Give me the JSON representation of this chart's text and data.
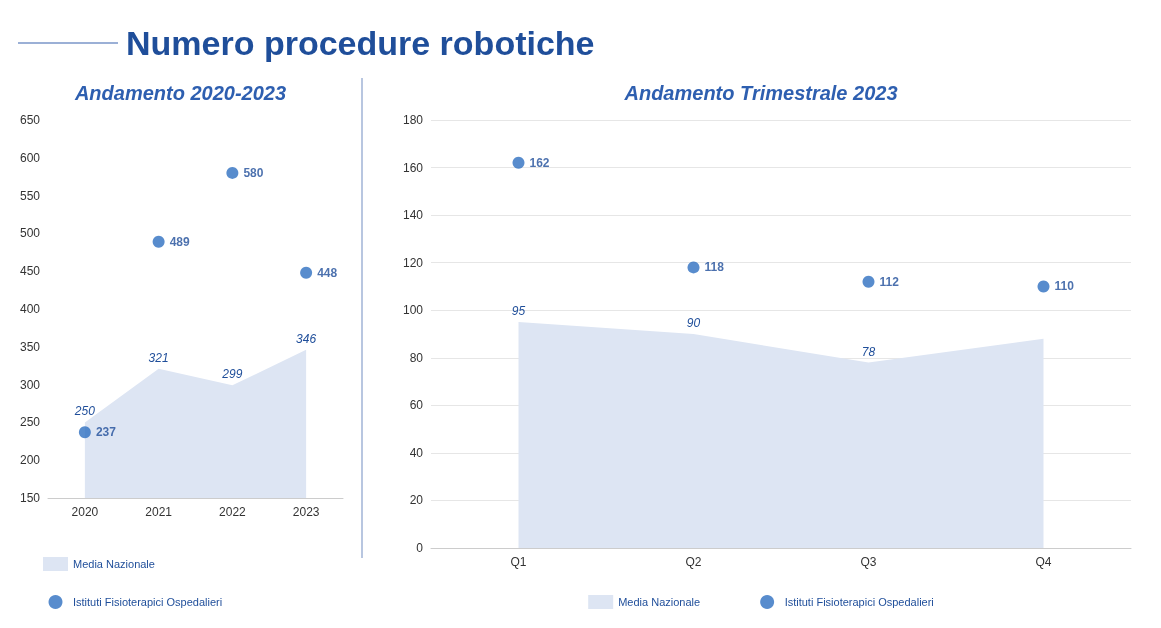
{
  "chart_data": [
    {
      "type": "area",
      "title": "Andamento 2020-2023",
      "annotations": [
        "Numero procedure robotiche"
      ],
      "categories": [
        "2020",
        "2021",
        "2022",
        "2023"
      ],
      "ylim": [
        150,
        650
      ],
      "yticks": [
        150,
        200,
        250,
        300,
        350,
        400,
        450,
        500,
        550,
        600,
        650
      ],
      "grid": false,
      "legend": "bottom left",
      "series": [
        {
          "name": "Media Nazionale",
          "color": "#dde5f3",
          "values": [
            250,
            321,
            299,
            346
          ],
          "value_labels": [
            "250",
            "321",
            "299",
            "346"
          ]
        },
        {
          "name": "Istituti Fisioterapici Ospedalieri",
          "type": "scatter",
          "color": "#2e6fc0",
          "marker": "circle",
          "values": [
            237,
            489,
            580,
            448
          ],
          "value_labels": [
            "237",
            "489",
            "580",
            "448"
          ]
        }
      ]
    },
    {
      "type": "area",
      "title": "Andamento Trimestrale 2023",
      "categories": [
        "Q1",
        "Q2",
        "Q3",
        "Q4"
      ],
      "ylim": [
        0,
        180
      ],
      "yticks": [
        0,
        20,
        40,
        60,
        80,
        100,
        120,
        140,
        160,
        180
      ],
      "grid": "y",
      "legend": "bottom",
      "series": [
        {
          "name": "Media Nazionale",
          "color": "#dde5f3",
          "values": [
            95,
            90,
            78,
            88
          ],
          "value_labels": [
            "95",
            "90",
            "78",
            null
          ]
        },
        {
          "name": "Istituti Fisioterapici Ospedalieri",
          "type": "scatter",
          "color": "#2e6fc0",
          "marker": "circle",
          "values": [
            162,
            118,
            112,
            110
          ],
          "value_labels": [
            "162",
            "118",
            "112",
            "110"
          ]
        }
      ]
    }
  ]
}
